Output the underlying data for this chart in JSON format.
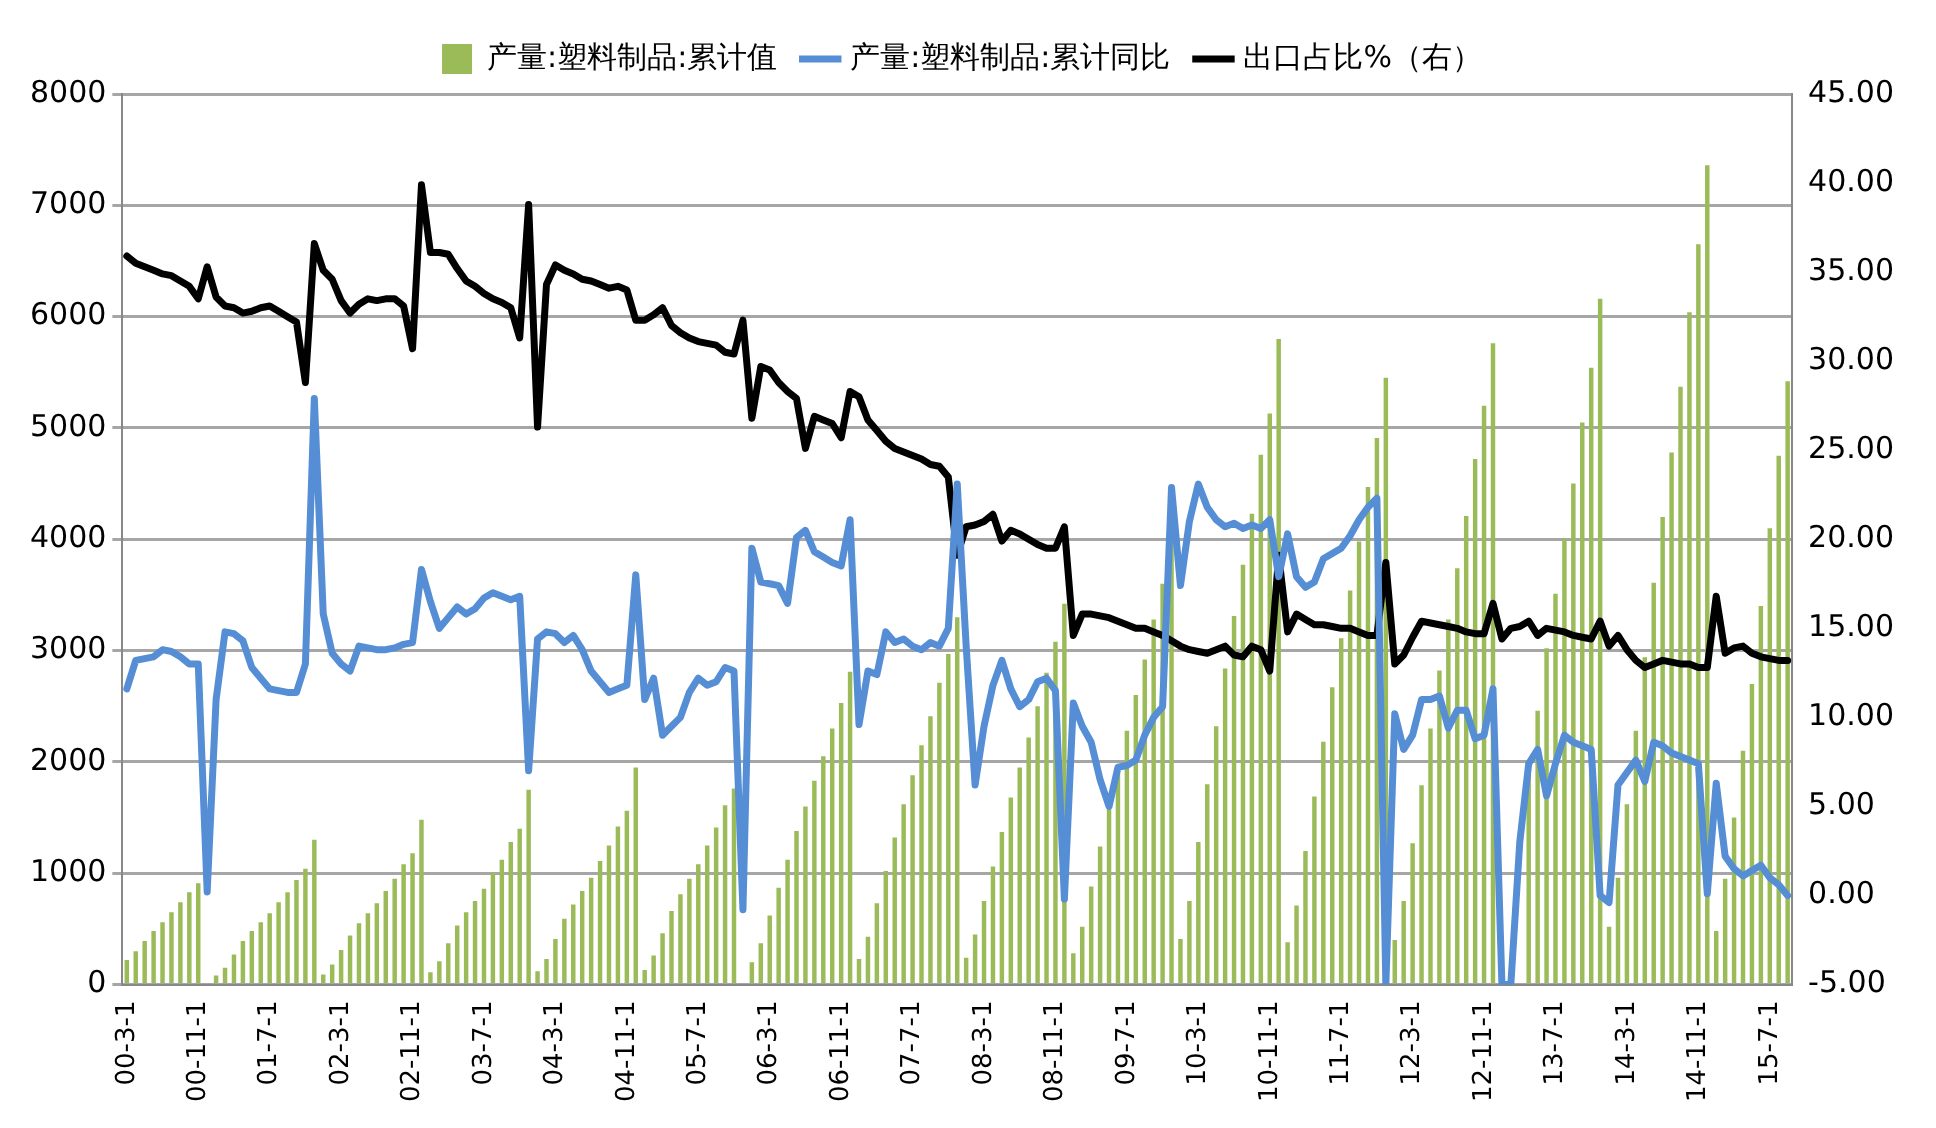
{
  "chart_data": {
    "type": "bar",
    "categories": [
      "00-3-1",
      null,
      null,
      null,
      null,
      null,
      null,
      null,
      "00-11-1",
      null,
      null,
      null,
      null,
      null,
      null,
      null,
      "01-7-1",
      null,
      null,
      null,
      null,
      null,
      null,
      null,
      "02-3-1",
      null,
      null,
      null,
      null,
      null,
      null,
      null,
      "02-11-1",
      null,
      null,
      null,
      null,
      null,
      null,
      null,
      "03-7-1",
      null,
      null,
      null,
      null,
      null,
      null,
      null,
      "04-3-1",
      null,
      null,
      null,
      null,
      null,
      null,
      null,
      "04-11-1",
      null,
      null,
      null,
      null,
      null,
      null,
      null,
      "05-7-1",
      null,
      null,
      null,
      null,
      null,
      null,
      null,
      "06-3-1",
      null,
      null,
      null,
      null,
      null,
      null,
      null,
      "06-11-1",
      null,
      null,
      null,
      null,
      null,
      null,
      null,
      "07-7-1",
      null,
      null,
      null,
      null,
      null,
      null,
      null,
      "08-3-1",
      null,
      null,
      null,
      null,
      null,
      null,
      null,
      "08-11-1",
      null,
      null,
      null,
      null,
      null,
      null,
      null,
      "09-7-1",
      null,
      null,
      null,
      null,
      null,
      null,
      null,
      "10-3-1",
      null,
      null,
      null,
      null,
      null,
      null,
      null,
      "10-11-1",
      null,
      null,
      null,
      null,
      null,
      null,
      null,
      "11-7-1",
      null,
      null,
      null,
      null,
      null,
      null,
      null,
      "12-3-1",
      null,
      null,
      null,
      null,
      null,
      null,
      null,
      "12-11-1",
      null,
      null,
      null,
      null,
      null,
      null,
      null,
      "13-7-1",
      null,
      null,
      null,
      null,
      null,
      null,
      null,
      "14-3-1",
      null,
      null,
      null,
      null,
      null,
      null,
      null,
      "14-11-1",
      null,
      null,
      null,
      null,
      null,
      null,
      null,
      "15-7-1",
      null,
      null
    ],
    "series": [
      {
        "name": "产量:塑料制品:累计值",
        "axis": "y",
        "color": "#9bbb59",
        "values": [
          220,
          300,
          390,
          480,
          560,
          650,
          740,
          830,
          910,
          null,
          80,
          150,
          270,
          390,
          480,
          560,
          640,
          740,
          830,
          940,
          1040,
          1300,
          90,
          180,
          310,
          440,
          550,
          640,
          730,
          840,
          950,
          1080,
          1180,
          1480,
          110,
          210,
          370,
          530,
          650,
          750,
          860,
          1000,
          1120,
          1280,
          1400,
          1750,
          120,
          230,
          410,
          590,
          720,
          840,
          960,
          1110,
          1250,
          1420,
          1560,
          1950,
          130,
          260,
          460,
          660,
          810,
          950,
          1080,
          1250,
          1410,
          1610,
          1760,
          null,
          200,
          370,
          620,
          870,
          1120,
          1380,
          1600,
          1830,
          2050,
          2300,
          2530,
          2810,
          230,
          430,
          730,
          1020,
          1320,
          1620,
          1880,
          2150,
          2410,
          2710,
          2970,
          3300,
          240,
          450,
          750,
          1060,
          1370,
          1680,
          1950,
          2220,
          2500,
          2800,
          3080,
          3420,
          280,
          520,
          880,
          1240,
          1600,
          1960,
          2280,
          2600,
          2920,
          3280,
          3600,
          4000,
          410,
          750,
          1280,
          1800,
          2320,
          2840,
          3310,
          3770,
          4230,
          4760,
          5130,
          5800,
          380,
          710,
          1200,
          1690,
          2180,
          2670,
          3110,
          3540,
          3980,
          4470,
          4910,
          5450,
          400,
          750,
          1270,
          1790,
          2300,
          2820,
          3280,
          3740,
          4210,
          4720,
          5200,
          5760,
          null,
          null,
          null,
          1910,
          2460,
          3020,
          3510,
          4000,
          4500,
          5050,
          5540,
          6160,
          520,
          960,
          1620,
          2280,
          2940,
          3610,
          4200,
          4780,
          5370,
          6040,
          6650,
          7360,
          480,
          950,
          1500,
          2100,
          2700,
          3400,
          4100,
          4750,
          5420
        ]
      },
      {
        "name": "产量:塑料制品:累计同比",
        "type": "line",
        "axis": "y2",
        "color": "#558ed5",
        "values": [
          11.6,
          13.2,
          13.3,
          13.4,
          13.8,
          13.7,
          13.4,
          13.0,
          13.0,
          0.2,
          11.0,
          14.8,
          14.7,
          14.3,
          12.8,
          12.2,
          11.6,
          11.5,
          11.4,
          11.4,
          13.0,
          27.9,
          15.8,
          13.6,
          13.0,
          12.6,
          14.0,
          13.9,
          13.8,
          13.8,
          13.9,
          14.1,
          14.2,
          18.3,
          16.5,
          15.0,
          15.6,
          16.2,
          15.8,
          16.1,
          16.7,
          17.0,
          16.8,
          16.6,
          16.8,
          7.0,
          14.4,
          14.8,
          14.7,
          14.2,
          14.6,
          13.8,
          12.6,
          12.0,
          11.4,
          11.6,
          11.8,
          18.0,
          11.0,
          12.2,
          9.0,
          9.5,
          10.0,
          11.4,
          12.2,
          11.8,
          12.0,
          12.8,
          12.6,
          -0.8,
          19.5,
          17.6,
          17.5,
          17.4,
          16.4,
          20.1,
          20.5,
          19.3,
          19.0,
          18.7,
          18.5,
          21.1,
          9.6,
          12.6,
          12.4,
          14.8,
          14.2,
          14.4,
          14.0,
          13.8,
          14.2,
          14.0,
          15.0,
          23.1,
          14.0,
          6.2,
          9.5,
          11.8,
          13.2,
          11.6,
          10.6,
          11.0,
          12.0,
          12.2,
          11.5,
          -0.2,
          10.8,
          9.5,
          8.6,
          6.5,
          5.0,
          7.2,
          7.3,
          7.6,
          9.0,
          10.0,
          10.6,
          22.9,
          17.4,
          21.0,
          23.1,
          21.8,
          21.1,
          20.7,
          20.9,
          20.6,
          20.8,
          20.6,
          21.1,
          17.9,
          20.3,
          17.9,
          17.3,
          17.6,
          18.9,
          19.2,
          19.5,
          20.2,
          21.1,
          21.8,
          22.3,
          -5.0,
          10.2,
          8.2,
          9.0,
          11.0,
          11.0,
          11.2,
          9.4,
          10.4,
          10.4,
          8.8,
          9.0,
          11.6,
          -5.0,
          -5.0,
          3.0,
          7.4,
          8.2,
          5.6,
          7.4,
          9.0,
          8.6,
          8.4,
          8.2,
          0.0,
          -0.4,
          6.2,
          6.9,
          7.6,
          6.4,
          8.6,
          8.4,
          8.0,
          7.8,
          7.6,
          7.4,
          0.1,
          6.3,
          2.2,
          1.5,
          1.1,
          1.4,
          1.7,
          1.0,
          0.6,
          0.0
        ]
      },
      {
        "name": "出口占比%（右）",
        "type": "line",
        "axis": "y2",
        "color": "#000000",
        "values": [
          35.9,
          35.5,
          35.3,
          35.1,
          34.9,
          34.8,
          34.5,
          34.2,
          33.5,
          35.3,
          33.6,
          33.1,
          33.0,
          32.7,
          32.8,
          33.0,
          33.1,
          32.8,
          32.5,
          32.2,
          28.8,
          36.6,
          35.1,
          34.6,
          33.4,
          32.7,
          33.2,
          33.5,
          33.4,
          33.5,
          33.5,
          33.1,
          30.7,
          39.9,
          36.1,
          36.1,
          36.0,
          35.2,
          34.5,
          34.2,
          33.8,
          33.5,
          33.3,
          33.0,
          31.3,
          38.8,
          26.3,
          34.3,
          35.4,
          35.1,
          34.9,
          34.6,
          34.5,
          34.3,
          34.1,
          34.2,
          34.0,
          32.3,
          32.3,
          32.6,
          33.0,
          32.0,
          31.6,
          31.3,
          31.1,
          31.0,
          30.9,
          30.5,
          30.4,
          32.3,
          26.8,
          29.7,
          29.5,
          28.8,
          28.3,
          27.9,
          25.1,
          26.9,
          26.7,
          26.5,
          25.7,
          28.3,
          28.0,
          26.7,
          26.1,
          25.5,
          25.1,
          24.9,
          24.7,
          24.5,
          24.2,
          24.1,
          23.5,
          19.1,
          20.7,
          20.8,
          21.0,
          21.4,
          19.9,
          20.5,
          20.3,
          20.0,
          19.7,
          19.5,
          19.5,
          20.7,
          14.6,
          15.8,
          15.8,
          15.7,
          15.6,
          15.4,
          15.2,
          15.0,
          15.0,
          14.8,
          14.6,
          14.3,
          14.0,
          13.8,
          13.7,
          13.6,
          13.8,
          14.0,
          13.5,
          13.4,
          14.0,
          13.8,
          12.6,
          19.1,
          14.8,
          15.8,
          15.5,
          15.2,
          15.2,
          15.1,
          15.0,
          15.0,
          14.8,
          14.6,
          14.6,
          18.7,
          13.0,
          13.5,
          14.5,
          15.4,
          15.3,
          15.2,
          15.1,
          15.0,
          14.8,
          14.7,
          14.7,
          16.4,
          14.4,
          15.0,
          15.1,
          15.4,
          14.6,
          15.0,
          14.9,
          14.8,
          14.6,
          14.5,
          14.4,
          15.4,
          14.0,
          14.6,
          13.8,
          13.2,
          12.8,
          13.0,
          13.2,
          13.1,
          13.0,
          13.0,
          12.8,
          12.8,
          16.8,
          13.6,
          13.9,
          14.0,
          13.6,
          13.4,
          13.3,
          13.2,
          13.2
        ]
      }
    ],
    "ylim": [
      0,
      8000
    ],
    "yticks": [
      0,
      1000,
      2000,
      3000,
      4000,
      5000,
      6000,
      7000,
      8000
    ],
    "y2lim": [
      -5,
      45
    ],
    "y2ticks": [
      {
        "value": -5,
        "label": "-5.00"
      },
      {
        "value": 0,
        "label": "0.00"
      },
      {
        "value": 5,
        "label": "5.00"
      },
      {
        "value": 10,
        "label": "10.00"
      },
      {
        "value": 15,
        "label": "15.00"
      },
      {
        "value": 20,
        "label": "20.00"
      },
      {
        "value": 25,
        "label": "25.00"
      },
      {
        "value": 30,
        "label": "30.00"
      },
      {
        "value": 35,
        "label": "35.00"
      },
      {
        "value": 40,
        "label": "40.00"
      },
      {
        "value": 45,
        "label": "45.00"
      }
    ],
    "grid": "y",
    "legend": "top",
    "marker": "none",
    "line_style": "solid"
  }
}
